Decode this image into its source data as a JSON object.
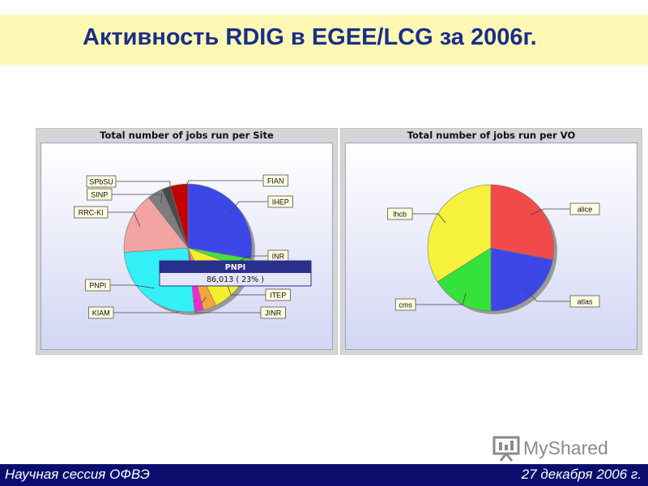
{
  "title": "Активность RDIG в EGEE/LCG за 2006г.",
  "footer": {
    "left": "Научная сессия ОФВЭ",
    "right": "27 декабря 2006 г."
  },
  "logo": {
    "text_my": "My",
    "text_shared": "Shared"
  },
  "colors": {
    "title": "#1b2d8a",
    "title_bar": "#fdf9b4",
    "footer_bg": "#0b0d6e"
  },
  "chart_data": [
    {
      "type": "pie",
      "title": "Total number of jobs run per Site",
      "slices": [
        {
          "label": "IHEP",
          "value": 25,
          "color": "#3d47e8"
        },
        {
          "label": "INR",
          "value": 2.5,
          "color": "#46e03c"
        },
        {
          "label": "ITEP",
          "value": 11,
          "color": "#f3ee2e"
        },
        {
          "label": "JINR",
          "value": 3,
          "color": "#f2a63c"
        },
        {
          "label": "KIAM",
          "value": 2,
          "color": "#ee2bd2"
        },
        {
          "label": "PNPI",
          "value": 23,
          "color": "#33f0f6"
        },
        {
          "label": "RRC-KI",
          "value": 14,
          "color": "#f4a3a3"
        },
        {
          "label": "SINP",
          "value": 3.5,
          "color": "#7d7d7d"
        },
        {
          "label": "SPbSU",
          "value": 2,
          "color": "#4a4a4a"
        },
        {
          "label": "FIAN",
          "value": 4,
          "color": "#c40000"
        }
      ],
      "tooltip": {
        "title": "PNPI",
        "value": "86,013 ( 23% )"
      }
    },
    {
      "type": "pie",
      "title": "Total number of jobs run per VO",
      "slices": [
        {
          "label": "alice",
          "value": 28,
          "color": "#f24a4a"
        },
        {
          "label": "atlas",
          "value": 22,
          "color": "#3d47e8"
        },
        {
          "label": "cms",
          "value": 16,
          "color": "#35e23a"
        },
        {
          "label": "lhcb",
          "value": 34,
          "color": "#f6f13a"
        }
      ]
    }
  ]
}
